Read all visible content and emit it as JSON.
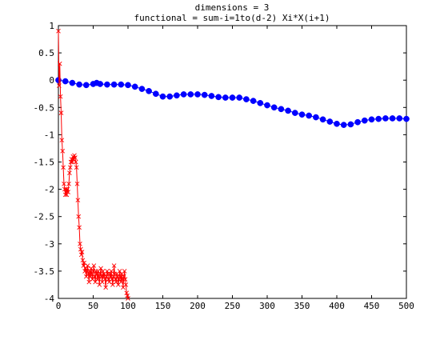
{
  "chart_data": {
    "type": "line",
    "title_lines": [
      "dimensions = 3",
      "functional = sum-i=1to(d-2) Xi*X(i+1)"
    ],
    "xlabel": "",
    "ylabel": "",
    "xlim": [
      0,
      500
    ],
    "ylim": [
      -4,
      1
    ],
    "x_ticks": [
      0,
      50,
      100,
      150,
      200,
      250,
      300,
      350,
      400,
      450,
      500
    ],
    "y_ticks": [
      1,
      0.5,
      0,
      -0.5,
      -1,
      -1.5,
      -2,
      -2.5,
      -3,
      -3.5,
      -4
    ],
    "y_tick_labels": [
      "1",
      "0.5",
      "0",
      "-0.5",
      "-1",
      "-1.5",
      "-2",
      "-2.5",
      "-3",
      "-3.5",
      "-4"
    ],
    "grid": false,
    "legend": "none",
    "series": [
      {
        "color": "#0000ff",
        "marker": "filled-circle",
        "points": [
          [
            0,
            0
          ],
          [
            10,
            -0.02
          ],
          [
            20,
            -0.05
          ],
          [
            30,
            -0.08
          ],
          [
            40,
            -0.09
          ],
          [
            50,
            -0.07
          ],
          [
            55,
            -0.05
          ],
          [
            60,
            -0.07
          ],
          [
            70,
            -0.08
          ],
          [
            80,
            -0.08
          ],
          [
            90,
            -0.08
          ],
          [
            100,
            -0.09
          ],
          [
            110,
            -0.12
          ],
          [
            120,
            -0.16
          ],
          [
            130,
            -0.2
          ],
          [
            140,
            -0.25
          ],
          [
            150,
            -0.3
          ],
          [
            160,
            -0.3
          ],
          [
            170,
            -0.28
          ],
          [
            180,
            -0.26
          ],
          [
            190,
            -0.26
          ],
          [
            200,
            -0.26
          ],
          [
            210,
            -0.27
          ],
          [
            220,
            -0.29
          ],
          [
            230,
            -0.31
          ],
          [
            240,
            -0.32
          ],
          [
            250,
            -0.32
          ],
          [
            260,
            -0.32
          ],
          [
            270,
            -0.35
          ],
          [
            280,
            -0.38
          ],
          [
            290,
            -0.42
          ],
          [
            300,
            -0.46
          ],
          [
            310,
            -0.5
          ],
          [
            320,
            -0.53
          ],
          [
            330,
            -0.56
          ],
          [
            340,
            -0.6
          ],
          [
            350,
            -0.63
          ],
          [
            360,
            -0.65
          ],
          [
            370,
            -0.68
          ],
          [
            380,
            -0.72
          ],
          [
            390,
            -0.76
          ],
          [
            400,
            -0.8
          ],
          [
            410,
            -0.82
          ],
          [
            420,
            -0.81
          ],
          [
            430,
            -0.77
          ],
          [
            440,
            -0.74
          ],
          [
            450,
            -0.72
          ],
          [
            460,
            -0.71
          ],
          [
            470,
            -0.7
          ],
          [
            480,
            -0.7
          ],
          [
            490,
            -0.7
          ],
          [
            500,
            -0.71
          ]
        ]
      },
      {
        "color": "#ff0000",
        "marker": "x",
        "points": [
          [
            0,
            0.9
          ],
          [
            1,
            -0.1
          ],
          [
            2,
            0.3
          ],
          [
            3,
            -0.3
          ],
          [
            4,
            -0.6
          ],
          [
            5,
            -1.1
          ],
          [
            6,
            -1.3
          ],
          [
            7,
            -1.6
          ],
          [
            8,
            -1.9
          ],
          [
            9,
            -2.0
          ],
          [
            10,
            -2.1
          ],
          [
            11,
            -2.0
          ],
          [
            12,
            -2.1
          ],
          [
            13,
            -2.0
          ],
          [
            14,
            -2.05
          ],
          [
            15,
            -1.9
          ],
          [
            16,
            -1.7
          ],
          [
            17,
            -1.6
          ],
          [
            18,
            -1.5
          ],
          [
            19,
            -1.45
          ],
          [
            20,
            -1.5
          ],
          [
            21,
            -1.4
          ],
          [
            22,
            -1.45
          ],
          [
            23,
            -1.38
          ],
          [
            24,
            -1.42
          ],
          [
            25,
            -1.5
          ],
          [
            26,
            -1.6
          ],
          [
            27,
            -1.9
          ],
          [
            28,
            -2.2
          ],
          [
            29,
            -2.5
          ],
          [
            30,
            -2.7
          ],
          [
            31,
            -3.0
          ],
          [
            32,
            -3.1
          ],
          [
            33,
            -3.2
          ],
          [
            34,
            -3.15
          ],
          [
            35,
            -3.3
          ],
          [
            36,
            -3.4
          ],
          [
            37,
            -3.35
          ],
          [
            38,
            -3.5
          ],
          [
            39,
            -3.45
          ],
          [
            40,
            -3.6
          ],
          [
            41,
            -3.5
          ],
          [
            42,
            -3.4
          ],
          [
            43,
            -3.55
          ],
          [
            44,
            -3.7
          ],
          [
            45,
            -3.5
          ],
          [
            46,
            -3.6
          ],
          [
            47,
            -3.45
          ],
          [
            48,
            -3.55
          ],
          [
            49,
            -3.65
          ],
          [
            50,
            -3.5
          ],
          [
            51,
            -3.4
          ],
          [
            52,
            -3.6
          ],
          [
            53,
            -3.7
          ],
          [
            54,
            -3.5
          ],
          [
            55,
            -3.55
          ],
          [
            56,
            -3.65
          ],
          [
            57,
            -3.5
          ],
          [
            58,
            -3.6
          ],
          [
            59,
            -3.75
          ],
          [
            60,
            -3.55
          ],
          [
            61,
            -3.45
          ],
          [
            62,
            -3.6
          ],
          [
            63,
            -3.7
          ],
          [
            64,
            -3.5
          ],
          [
            65,
            -3.6
          ],
          [
            66,
            -3.55
          ],
          [
            67,
            -3.65
          ],
          [
            68,
            -3.8
          ],
          [
            69,
            -3.6
          ],
          [
            70,
            -3.5
          ],
          [
            71,
            -3.55
          ],
          [
            72,
            -3.65
          ],
          [
            73,
            -3.7
          ],
          [
            74,
            -3.55
          ],
          [
            75,
            -3.6
          ],
          [
            76,
            -3.5
          ],
          [
            77,
            -3.65
          ],
          [
            78,
            -3.75
          ],
          [
            79,
            -3.6
          ],
          [
            80,
            -3.4
          ],
          [
            81,
            -3.55
          ],
          [
            82,
            -3.65
          ],
          [
            83,
            -3.7
          ],
          [
            84,
            -3.55
          ],
          [
            85,
            -3.6
          ],
          [
            86,
            -3.75
          ],
          [
            87,
            -3.65
          ],
          [
            88,
            -3.5
          ],
          [
            89,
            -3.6
          ],
          [
            90,
            -3.7
          ],
          [
            91,
            -3.55
          ],
          [
            92,
            -3.65
          ],
          [
            93,
            -3.8
          ],
          [
            94,
            -3.6
          ],
          [
            95,
            -3.5
          ],
          [
            96,
            -3.65
          ],
          [
            97,
            -3.75
          ],
          [
            98,
            -3.9
          ],
          [
            99,
            -3.95
          ],
          [
            100,
            -4.0
          ]
        ]
      }
    ]
  }
}
